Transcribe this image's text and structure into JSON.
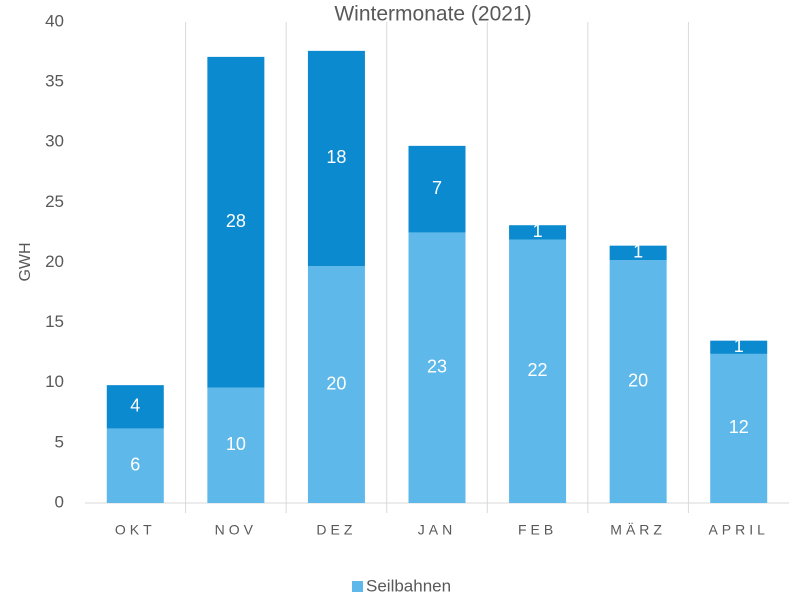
{
  "chart_data": {
    "type": "stacked_bar",
    "title": "Wintermonate (2021)",
    "y_label": "GWH",
    "categories": [
      "OKT",
      "NOV",
      "DEZ",
      "JAN",
      "FEB",
      "MÄRZ",
      "APRIL"
    ],
    "series": [
      {
        "name": "Seilbahnen",
        "color": "#5eb8ea",
        "values": [
          6.2,
          9.6,
          19.7,
          22.5,
          21.9,
          20.2,
          12.4
        ],
        "value_labels": [
          "6",
          "10",
          "20",
          "23",
          "22",
          "20",
          "12"
        ]
      },
      {
        "color": "#0b8ad0",
        "values": [
          3.6,
          27.5,
          17.9,
          7.2,
          1.2,
          1.2,
          1.1
        ],
        "value_labels": [
          "4",
          "28",
          "18",
          "7",
          "1",
          "1",
          "1"
        ]
      }
    ],
    "ylim": [
      0,
      40
    ],
    "yticks": [
      0,
      5,
      10,
      15,
      20,
      25,
      30,
      35,
      40
    ],
    "grid": "vertical",
    "legend": "bottom"
  }
}
